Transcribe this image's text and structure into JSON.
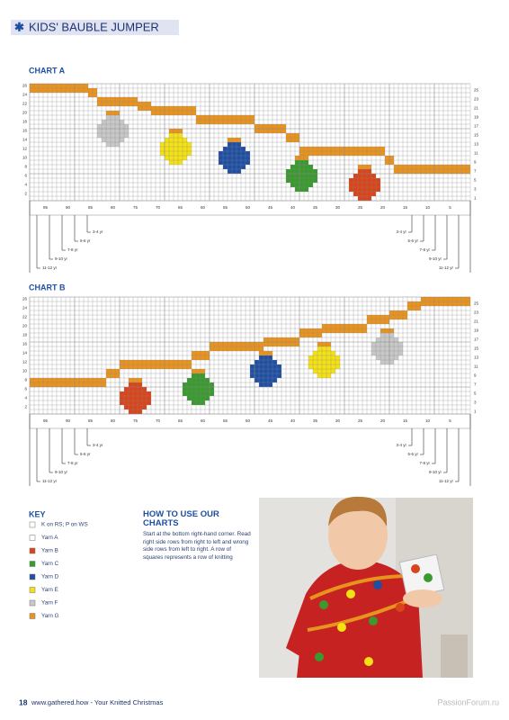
{
  "header": {
    "title": "KIDS' BAUBLE JUMPER"
  },
  "charts": [
    {
      "title": "CHART A",
      "rows_left": [
        26,
        24,
        22,
        20,
        18,
        16,
        14,
        12,
        10,
        8,
        6,
        4,
        2
      ],
      "rows_right": [
        25,
        23,
        21,
        19,
        17,
        15,
        13,
        11,
        9,
        7,
        5,
        3,
        1
      ],
      "columns": [
        95,
        90,
        85,
        80,
        75,
        70,
        65,
        60,
        55,
        50,
        45,
        40,
        35,
        30,
        25,
        20,
        15,
        10,
        5
      ],
      "sizes": [
        "3-4 yr",
        "5-6 yr",
        "7-8 yr",
        "9-10 yr",
        "11-12 yr"
      ]
    },
    {
      "title": "CHART B",
      "rows_left": [
        26,
        24,
        22,
        20,
        18,
        16,
        14,
        12,
        10,
        8,
        6,
        4,
        2
      ],
      "rows_right": [
        25,
        23,
        21,
        19,
        17,
        15,
        13,
        11,
        9,
        7,
        5,
        3,
        1
      ],
      "columns": [
        95,
        90,
        85,
        80,
        75,
        70,
        65,
        60,
        55,
        50,
        45,
        40,
        35,
        30,
        25,
        20,
        15,
        10,
        5
      ],
      "sizes": [
        "3-4 yr",
        "5-6 yr",
        "7-8 yr",
        "9-10 yr",
        "11-12 yr"
      ]
    }
  ],
  "key": {
    "title": "KEY",
    "items": [
      "K on RS; P on WS",
      "Yarn A",
      "Yarn B",
      "Yarn C",
      "Yarn D",
      "Yarn E",
      "Yarn F",
      "Yarn G"
    ]
  },
  "how_to": {
    "title": "HOW TO USE OUR CHARTS",
    "text": "Start at the bottom right-hand corner. Read right side rows from right to left and wrong side rows from left to right. A row of squares represents a row of knitting"
  },
  "footer": {
    "page": 18,
    "text": "www.gathered.how - Your Knitted Christmas"
  },
  "watermark": "PassionForum.ru"
}
